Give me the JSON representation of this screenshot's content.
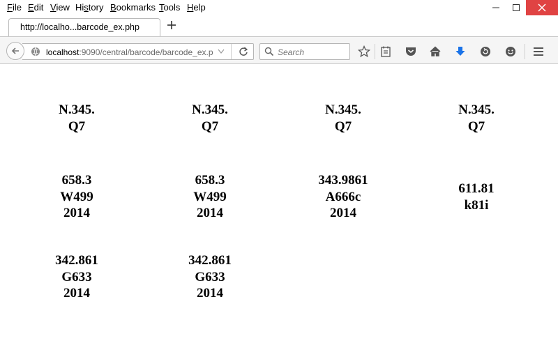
{
  "menu": {
    "file": "File",
    "edit": "Edit",
    "view": "View",
    "history": "History",
    "bookmarks": "Bookmarks",
    "tools": "Tools",
    "help": "Help"
  },
  "tab": {
    "title": "http://localho...barcode_ex.php"
  },
  "url": {
    "host": "localhost",
    "rest": ":9090/central/barcode/barcode_ex.p"
  },
  "search": {
    "placeholder": "Search"
  },
  "labels": [
    [
      "N.345.",
      "Q7"
    ],
    [
      "N.345.",
      "Q7"
    ],
    [
      "N.345.",
      "Q7"
    ],
    [
      "N.345.",
      "Q7"
    ],
    [
      "658.3",
      "W499",
      "2014"
    ],
    [
      "658.3",
      "W499",
      "2014"
    ],
    [
      "343.9861",
      "A666c",
      "2014"
    ],
    [
      "611.81",
      "k81i"
    ],
    [
      "342.861",
      "G633",
      "2014"
    ],
    [
      "342.861",
      "G633",
      "2014"
    ]
  ],
  "colors": {
    "close_button": "#e04343",
    "download_arrow": "#1a73e8"
  }
}
